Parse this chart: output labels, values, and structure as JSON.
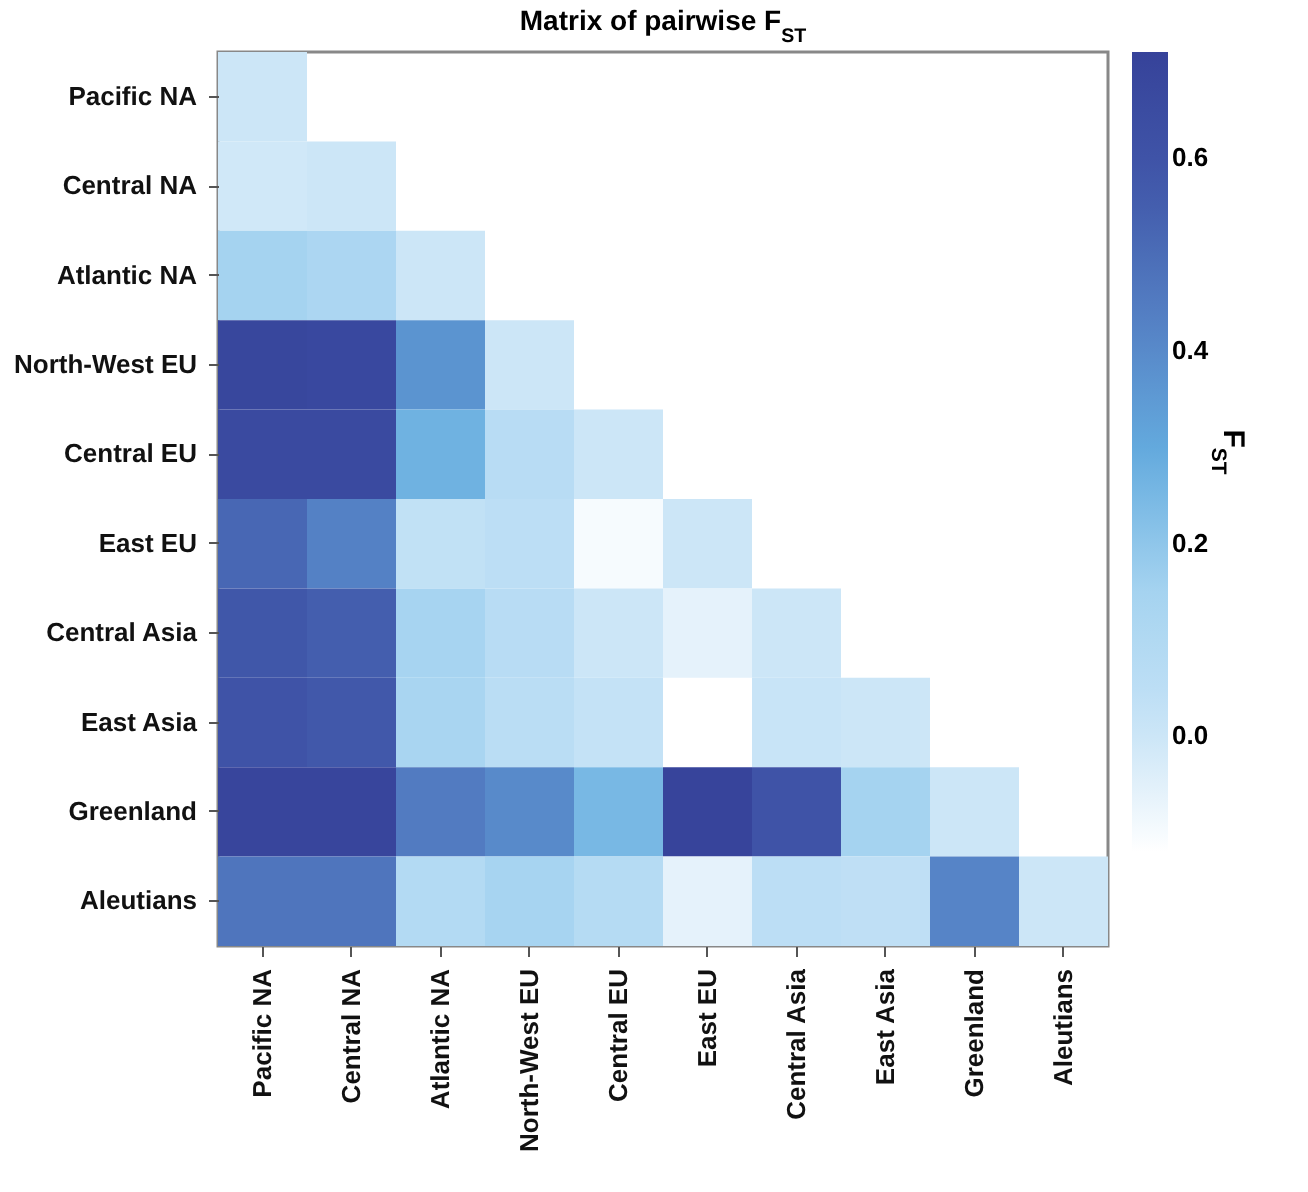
{
  "chart_data": {
    "type": "heatmap",
    "title": "Matrix of pairwise F$_{ST}$",
    "clabel": "F$_{ST}$",
    "categories": [
      "Pacific NA",
      "Central NA",
      "Atlantic NA",
      "North-West EU",
      "Central EU",
      "East EU",
      "Central Asia",
      "East Asia",
      "Greenland",
      "Aleutians"
    ],
    "y_categories": [
      "Pacific NA",
      "Central NA",
      "Atlantic NA",
      "North-West EU",
      "Central EU",
      "East EU",
      "Central Asia",
      "East Asia",
      "Greenland",
      "Aleutians"
    ],
    "cells": [
      [
        0.0,
        null,
        null,
        null,
        null,
        null,
        null,
        null,
        null,
        null
      ],
      [
        -0.01,
        0.0,
        null,
        null,
        null,
        null,
        null,
        null,
        null,
        null
      ],
      [
        0.15,
        0.12,
        0.0,
        null,
        null,
        null,
        null,
        null,
        null,
        null
      ],
      [
        0.68,
        0.67,
        0.37,
        0.0,
        null,
        null,
        null,
        null,
        null,
        null
      ],
      [
        0.66,
        0.66,
        0.27,
        0.07,
        0.0,
        null,
        null,
        null,
        null,
        null
      ],
      [
        0.52,
        0.43,
        0.03,
        0.05,
        -0.1,
        0.0,
        null,
        null,
        null,
        null
      ],
      [
        0.58,
        0.55,
        0.14,
        0.07,
        0.0,
        -0.06,
        0.0,
        null,
        null,
        null
      ],
      [
        0.6,
        0.57,
        0.13,
        0.06,
        0.02,
        null,
        0.01,
        0.0,
        null,
        null
      ],
      [
        0.69,
        0.69,
        0.45,
        0.4,
        0.25,
        0.7,
        0.6,
        0.15,
        0.0,
        null
      ],
      [
        0.47,
        0.47,
        0.09,
        0.14,
        0.08,
        -0.06,
        0.05,
        0.04,
        0.42,
        0.0
      ]
    ],
    "clim": [
      -0.12,
      0.71
    ],
    "cticks": [
      {
        "value": 0,
        "label": "0.0"
      },
      0.2,
      0.4,
      0.6
    ]
  }
}
